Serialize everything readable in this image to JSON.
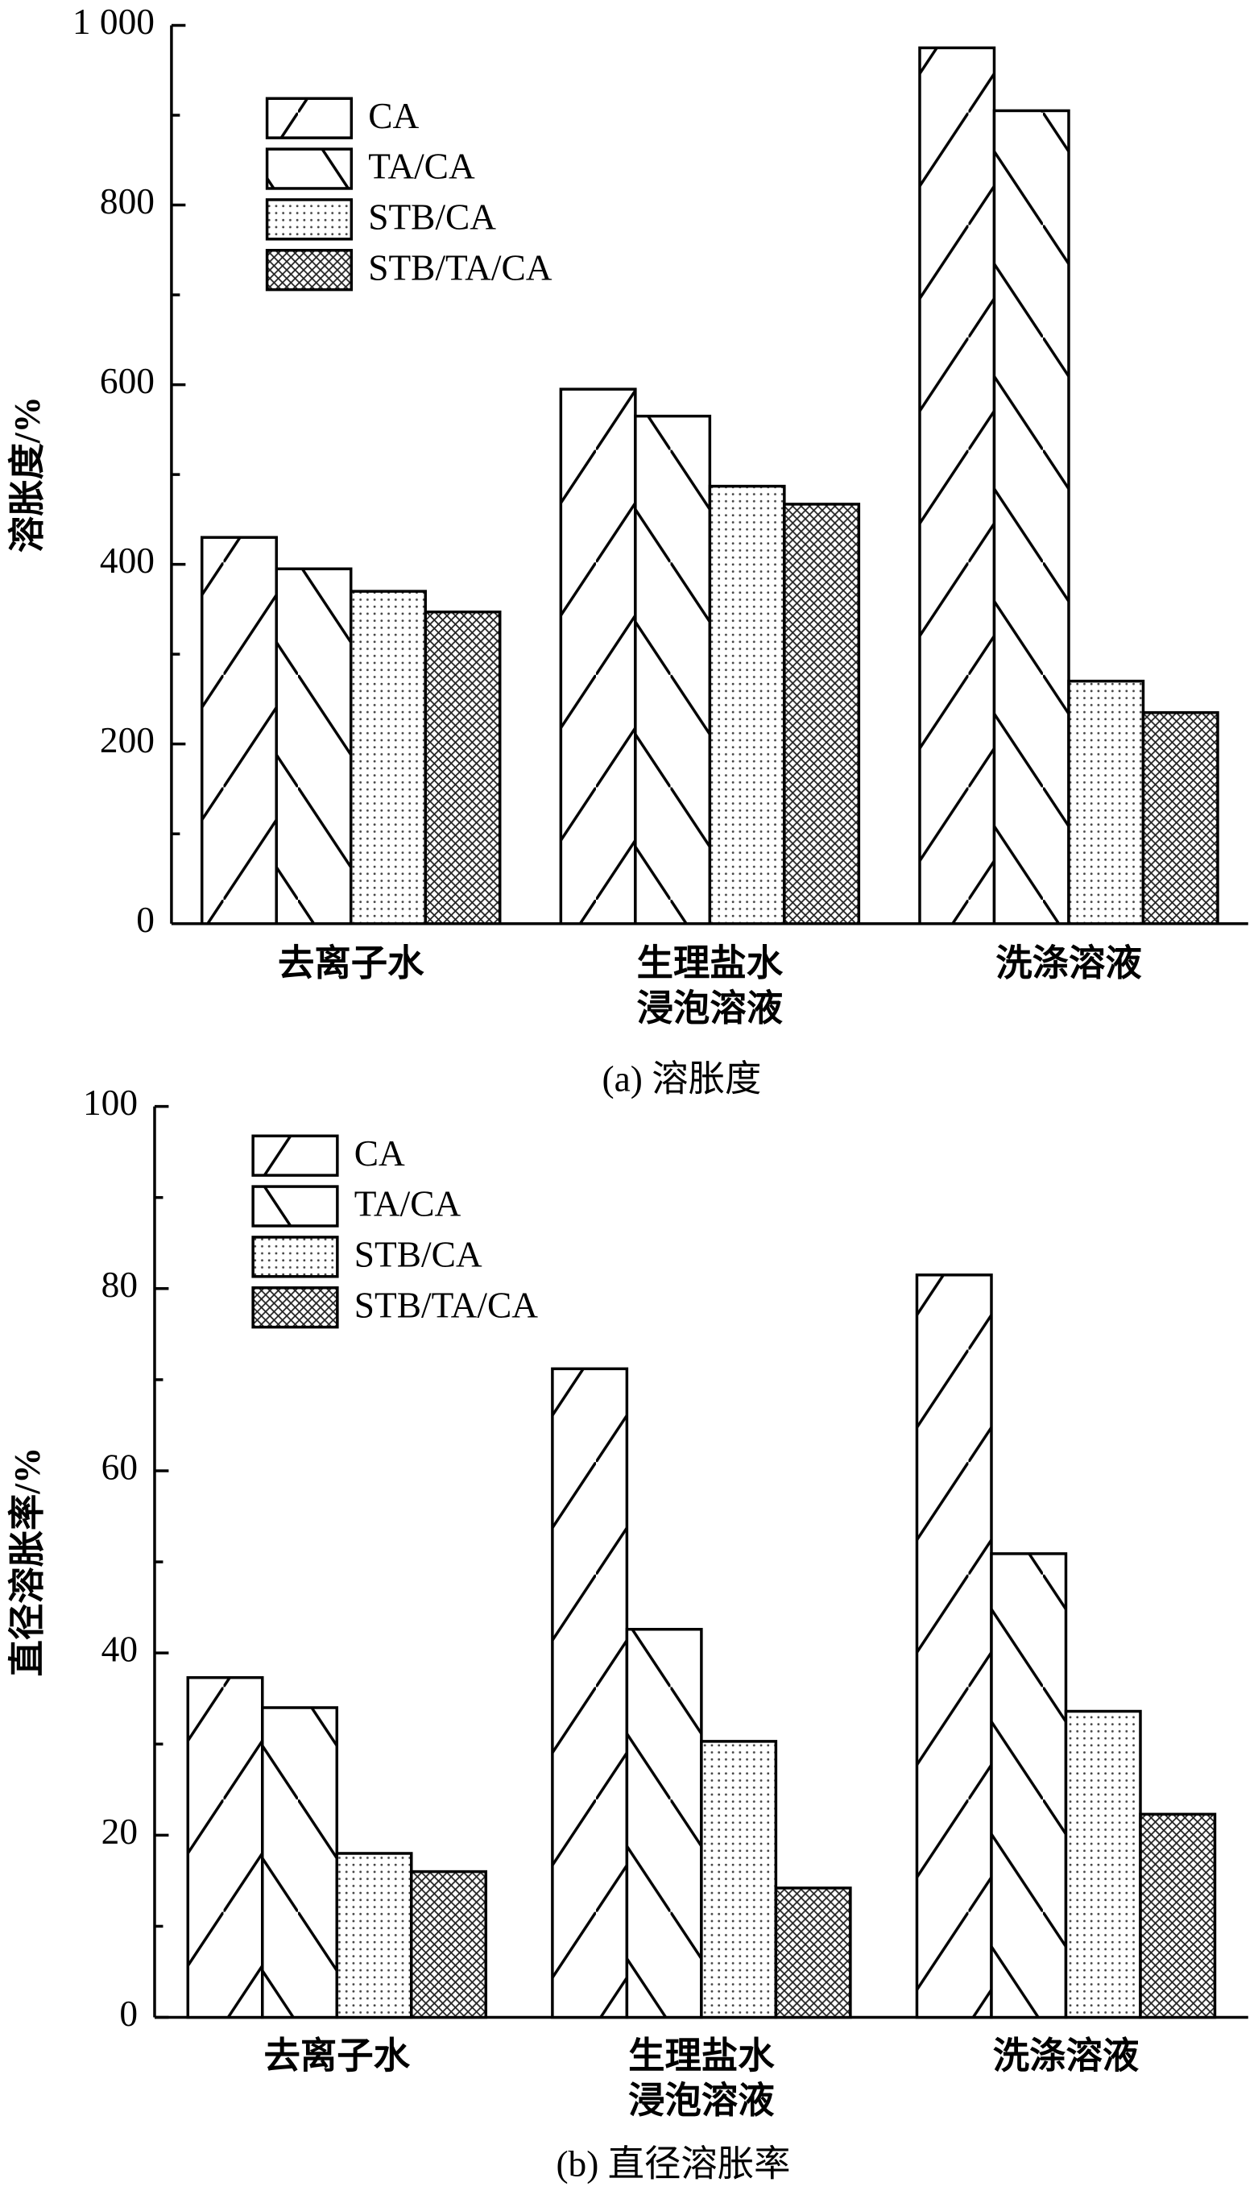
{
  "chart_data": [
    {
      "type": "bar",
      "title": "(a) 溶胀度",
      "y_label": "溶胀度/%",
      "categories": [
        [
          "去离子水"
        ],
        [
          "生理盐水",
          "浸泡溶液"
        ],
        [
          "洗涤溶液"
        ]
      ],
      "series": [
        {
          "name": "CA",
          "color": "#000000",
          "pattern": "forward-hatch",
          "values": [
            430,
            595,
            975
          ]
        },
        {
          "name": "TA/CA",
          "color": "#000000",
          "pattern": "back-hatch",
          "values": [
            395,
            565,
            905
          ]
        },
        {
          "name": "STB/CA",
          "color": "#000000",
          "pattern": "dots",
          "values": [
            370,
            487,
            270
          ]
        },
        {
          "name": "STB/TA/CA",
          "color": "#000000",
          "pattern": "crosshatch",
          "values": [
            347,
            467,
            235
          ]
        }
      ],
      "ylim": [
        0,
        1000
      ],
      "yticks": [
        0,
        200,
        400,
        600,
        800,
        {
          "value": 1000,
          "label": "1 000"
        }
      ],
      "yminor": [
        100,
        300,
        500,
        700,
        900
      ],
      "legend": "upper left"
    },
    {
      "type": "bar",
      "title": "(b) 直径溶胀率",
      "y_label": "直径溶胀率/%",
      "categories": [
        [
          "去离子水"
        ],
        [
          "生理盐水",
          "浸泡溶液"
        ],
        [
          "洗涤溶液"
        ]
      ],
      "series": [
        {
          "name": "CA",
          "color": "#000000",
          "pattern": "forward-hatch",
          "values": [
            37.3,
            71.2,
            81.5
          ]
        },
        {
          "name": "TA/CA",
          "color": "#000000",
          "pattern": "back-hatch",
          "values": [
            34,
            42.6,
            50.9
          ]
        },
        {
          "name": "STB/CA",
          "color": "#000000",
          "pattern": "dots",
          "values": [
            18,
            30.3,
            33.6
          ]
        },
        {
          "name": "STB/TA/CA",
          "color": "#000000",
          "pattern": "crosshatch",
          "values": [
            16,
            14.2,
            22.3
          ]
        }
      ],
      "ylim": [
        0,
        100
      ],
      "yticks": [
        0,
        20,
        40,
        60,
        80,
        100
      ],
      "yminor": [
        10,
        30,
        50,
        70,
        90
      ],
      "legend": "upper left"
    }
  ]
}
